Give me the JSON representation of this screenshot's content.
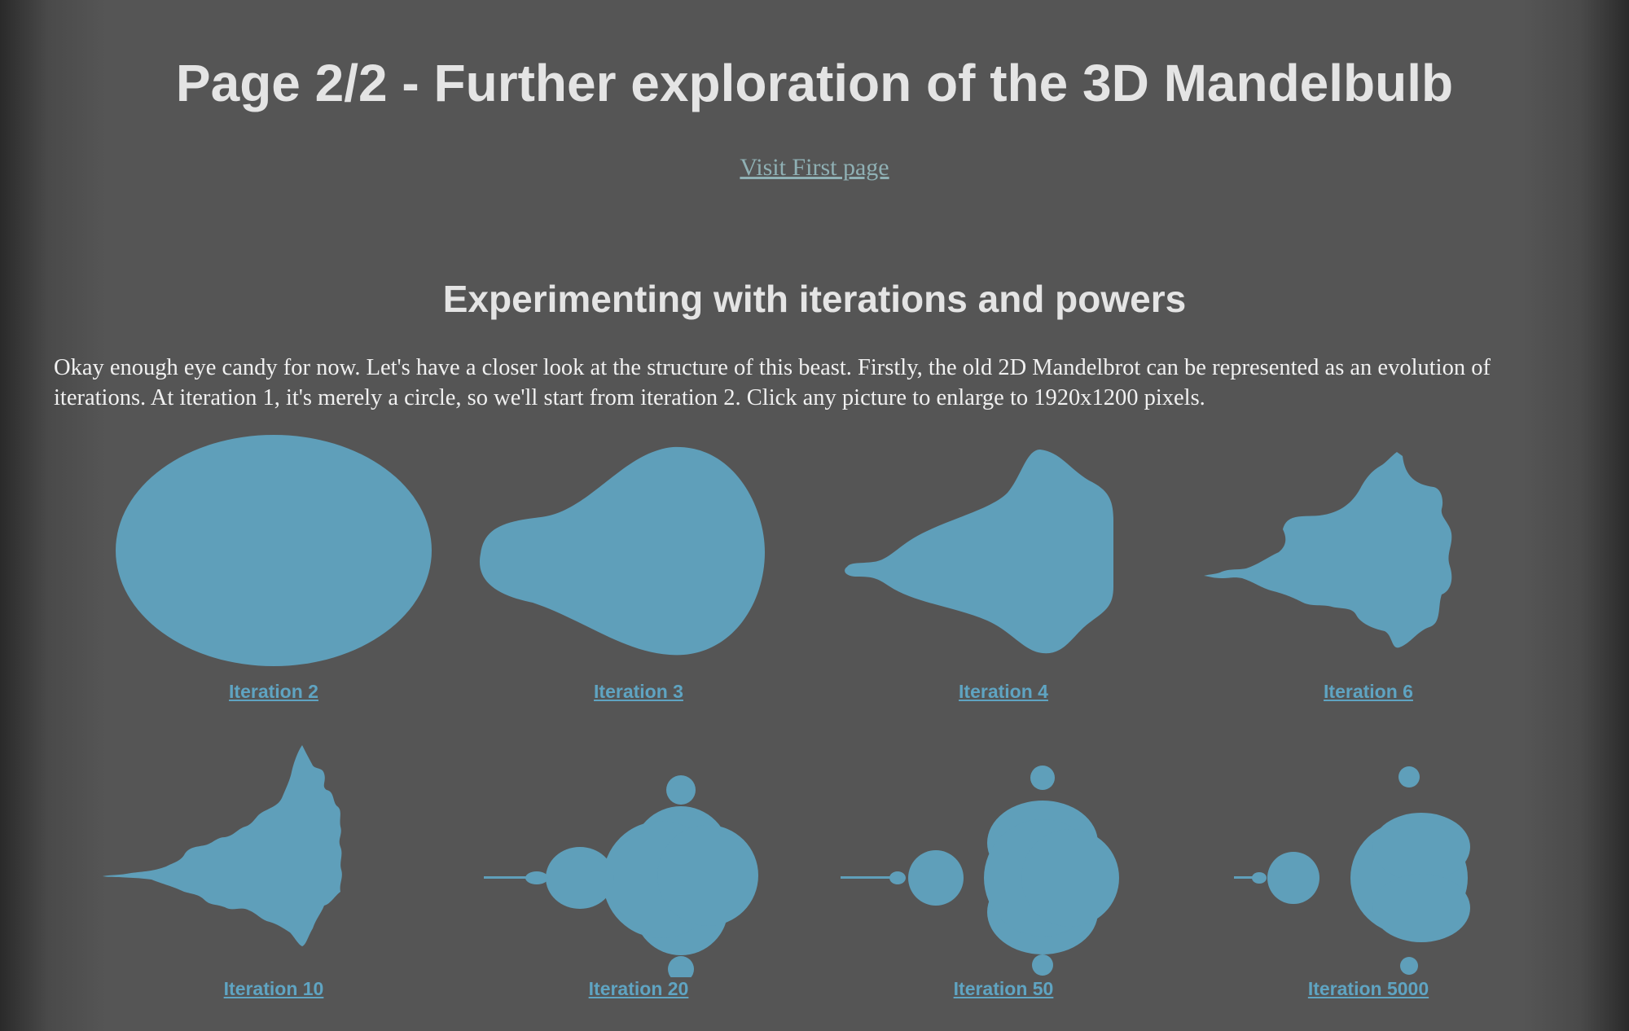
{
  "header": {
    "title": "Page 2/2 - Further exploration of the 3D Mandelbulb",
    "first_page_link": "Visit First page"
  },
  "section": {
    "heading": "Experimenting with iterations and powers",
    "intro": "Okay enough eye candy for now. Let's have a closer look at the structure of this beast. Firstly, the old 2D Mandelbrot can be represented as an evolution of iterations. At iteration 1, it's merely a circle, so we'll start from iteration 2. Click any picture to enlarge to 1920x1200 pixels."
  },
  "gallery": {
    "shape_color": "#5f9fba",
    "items": [
      {
        "caption": "Iteration 2"
      },
      {
        "caption": "Iteration 3"
      },
      {
        "caption": "Iteration 4"
      },
      {
        "caption": "Iteration 6"
      },
      {
        "caption": "Iteration 10"
      },
      {
        "caption": "Iteration 20"
      },
      {
        "caption": "Iteration 50"
      },
      {
        "caption": "Iteration 5000"
      }
    ]
  }
}
